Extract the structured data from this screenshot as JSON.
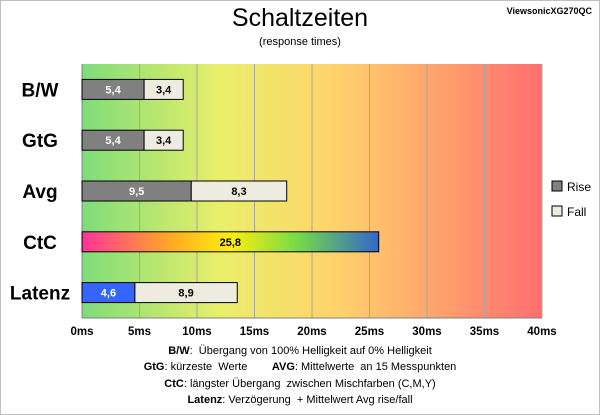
{
  "title": "Schaltzeiten",
  "subtitle": "(response times)",
  "model": "ViewsonicXG270QC",
  "chart_data": {
    "type": "bar",
    "orientation": "horizontal",
    "stacked": true,
    "categories": [
      "B/W",
      "GtG",
      "Avg",
      "CtC",
      "Latenz"
    ],
    "series": [
      {
        "name": "Rise",
        "values": [
          5.4,
          5.4,
          9.5,
          25.8,
          4.6
        ]
      },
      {
        "name": "Fall",
        "values": [
          3.4,
          3.4,
          8.3,
          null,
          8.9
        ]
      }
    ],
    "xlim": [
      0,
      40
    ],
    "x_ticks": [
      "0ms",
      "5ms",
      "10ms",
      "15ms",
      "20ms",
      "25ms",
      "30ms",
      "35ms",
      "40ms"
    ],
    "grid": true,
    "legend_position": "right",
    "background": "gradient green-yellow-orange-red",
    "colors": {
      "rise": "#808080",
      "fall": "#eeece1",
      "latenz_rise": "#3366ff",
      "ctc_gradient": [
        "#ff3399",
        "#ffcc00",
        "#99dd33",
        "#33aacc",
        "#3366cc"
      ]
    }
  },
  "notes": {
    "bw_key": "B/W",
    "bw_text": ":  Übergang von 100% Helligkeit auf 0% Helligkeit",
    "gtg_key": "GtG",
    "gtg_text": ": kürzeste  Werte        ",
    "avg_key": "AVG",
    "avg_text": ": Mittelwerte  an 15 Messpunkten",
    "ctc_key": "CtC",
    "ctc_text": ": längster Übergang  zwischen Mischfarben (C,M,Y)",
    "latenz_key": "Latenz",
    "latenz_text": ": Verzögerung  + Mittelwert Avg rise/fall"
  }
}
